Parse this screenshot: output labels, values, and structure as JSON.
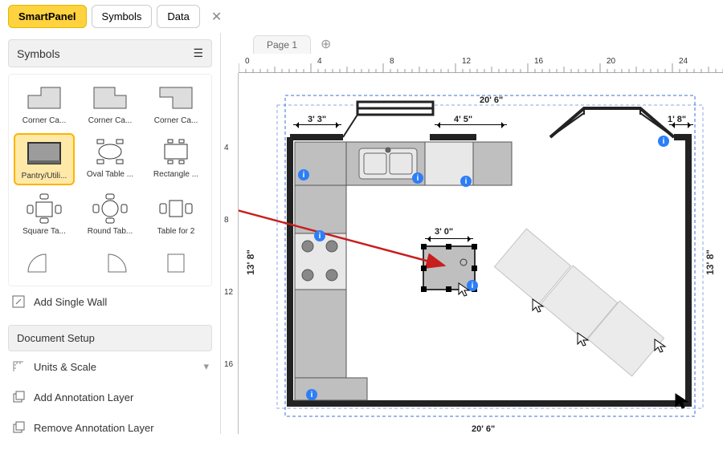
{
  "tabs": {
    "smartpanel": "SmartPanel",
    "symbols": "Symbols",
    "data": "Data"
  },
  "panels": {
    "symbols_title": "Symbols",
    "add_wall": "Add Single Wall",
    "doc_setup": "Document Setup",
    "units_scale": "Units & Scale",
    "add_anno": "Add Annotation Layer",
    "remove_anno": "Remove Annotation Layer"
  },
  "symbol_items": [
    {
      "label": "Corner Ca..."
    },
    {
      "label": "Corner Ca..."
    },
    {
      "label": "Corner Ca..."
    },
    {
      "label": "Pantry/Utili..."
    },
    {
      "label": "Oval Table ..."
    },
    {
      "label": "Rectangle ..."
    },
    {
      "label": "Square Ta..."
    },
    {
      "label": "Round Tab..."
    },
    {
      "label": "Table for 2"
    }
  ],
  "page": {
    "name": "Page 1"
  },
  "ruler_h": [
    "0",
    "4",
    "8",
    "12",
    "16",
    "20",
    "24"
  ],
  "ruler_v": [
    "4",
    "8",
    "12",
    "16"
  ],
  "dims": {
    "top_total": "20' 6\"",
    "left_seg": "3' 3\"",
    "mid_seg": "4' 5\"",
    "right_seg": "1' 8\"",
    "center_obj": "3' 0\"",
    "bottom_total": "20' 6\"",
    "side": "13' 8\""
  },
  "colors": {
    "wall": "#333333",
    "fill": "#bfbfbf",
    "light_fill": "#d9d9d9",
    "accent": "#ffd23f",
    "dim_line": "#3b6fd6",
    "arrow": "#c81e1e"
  }
}
